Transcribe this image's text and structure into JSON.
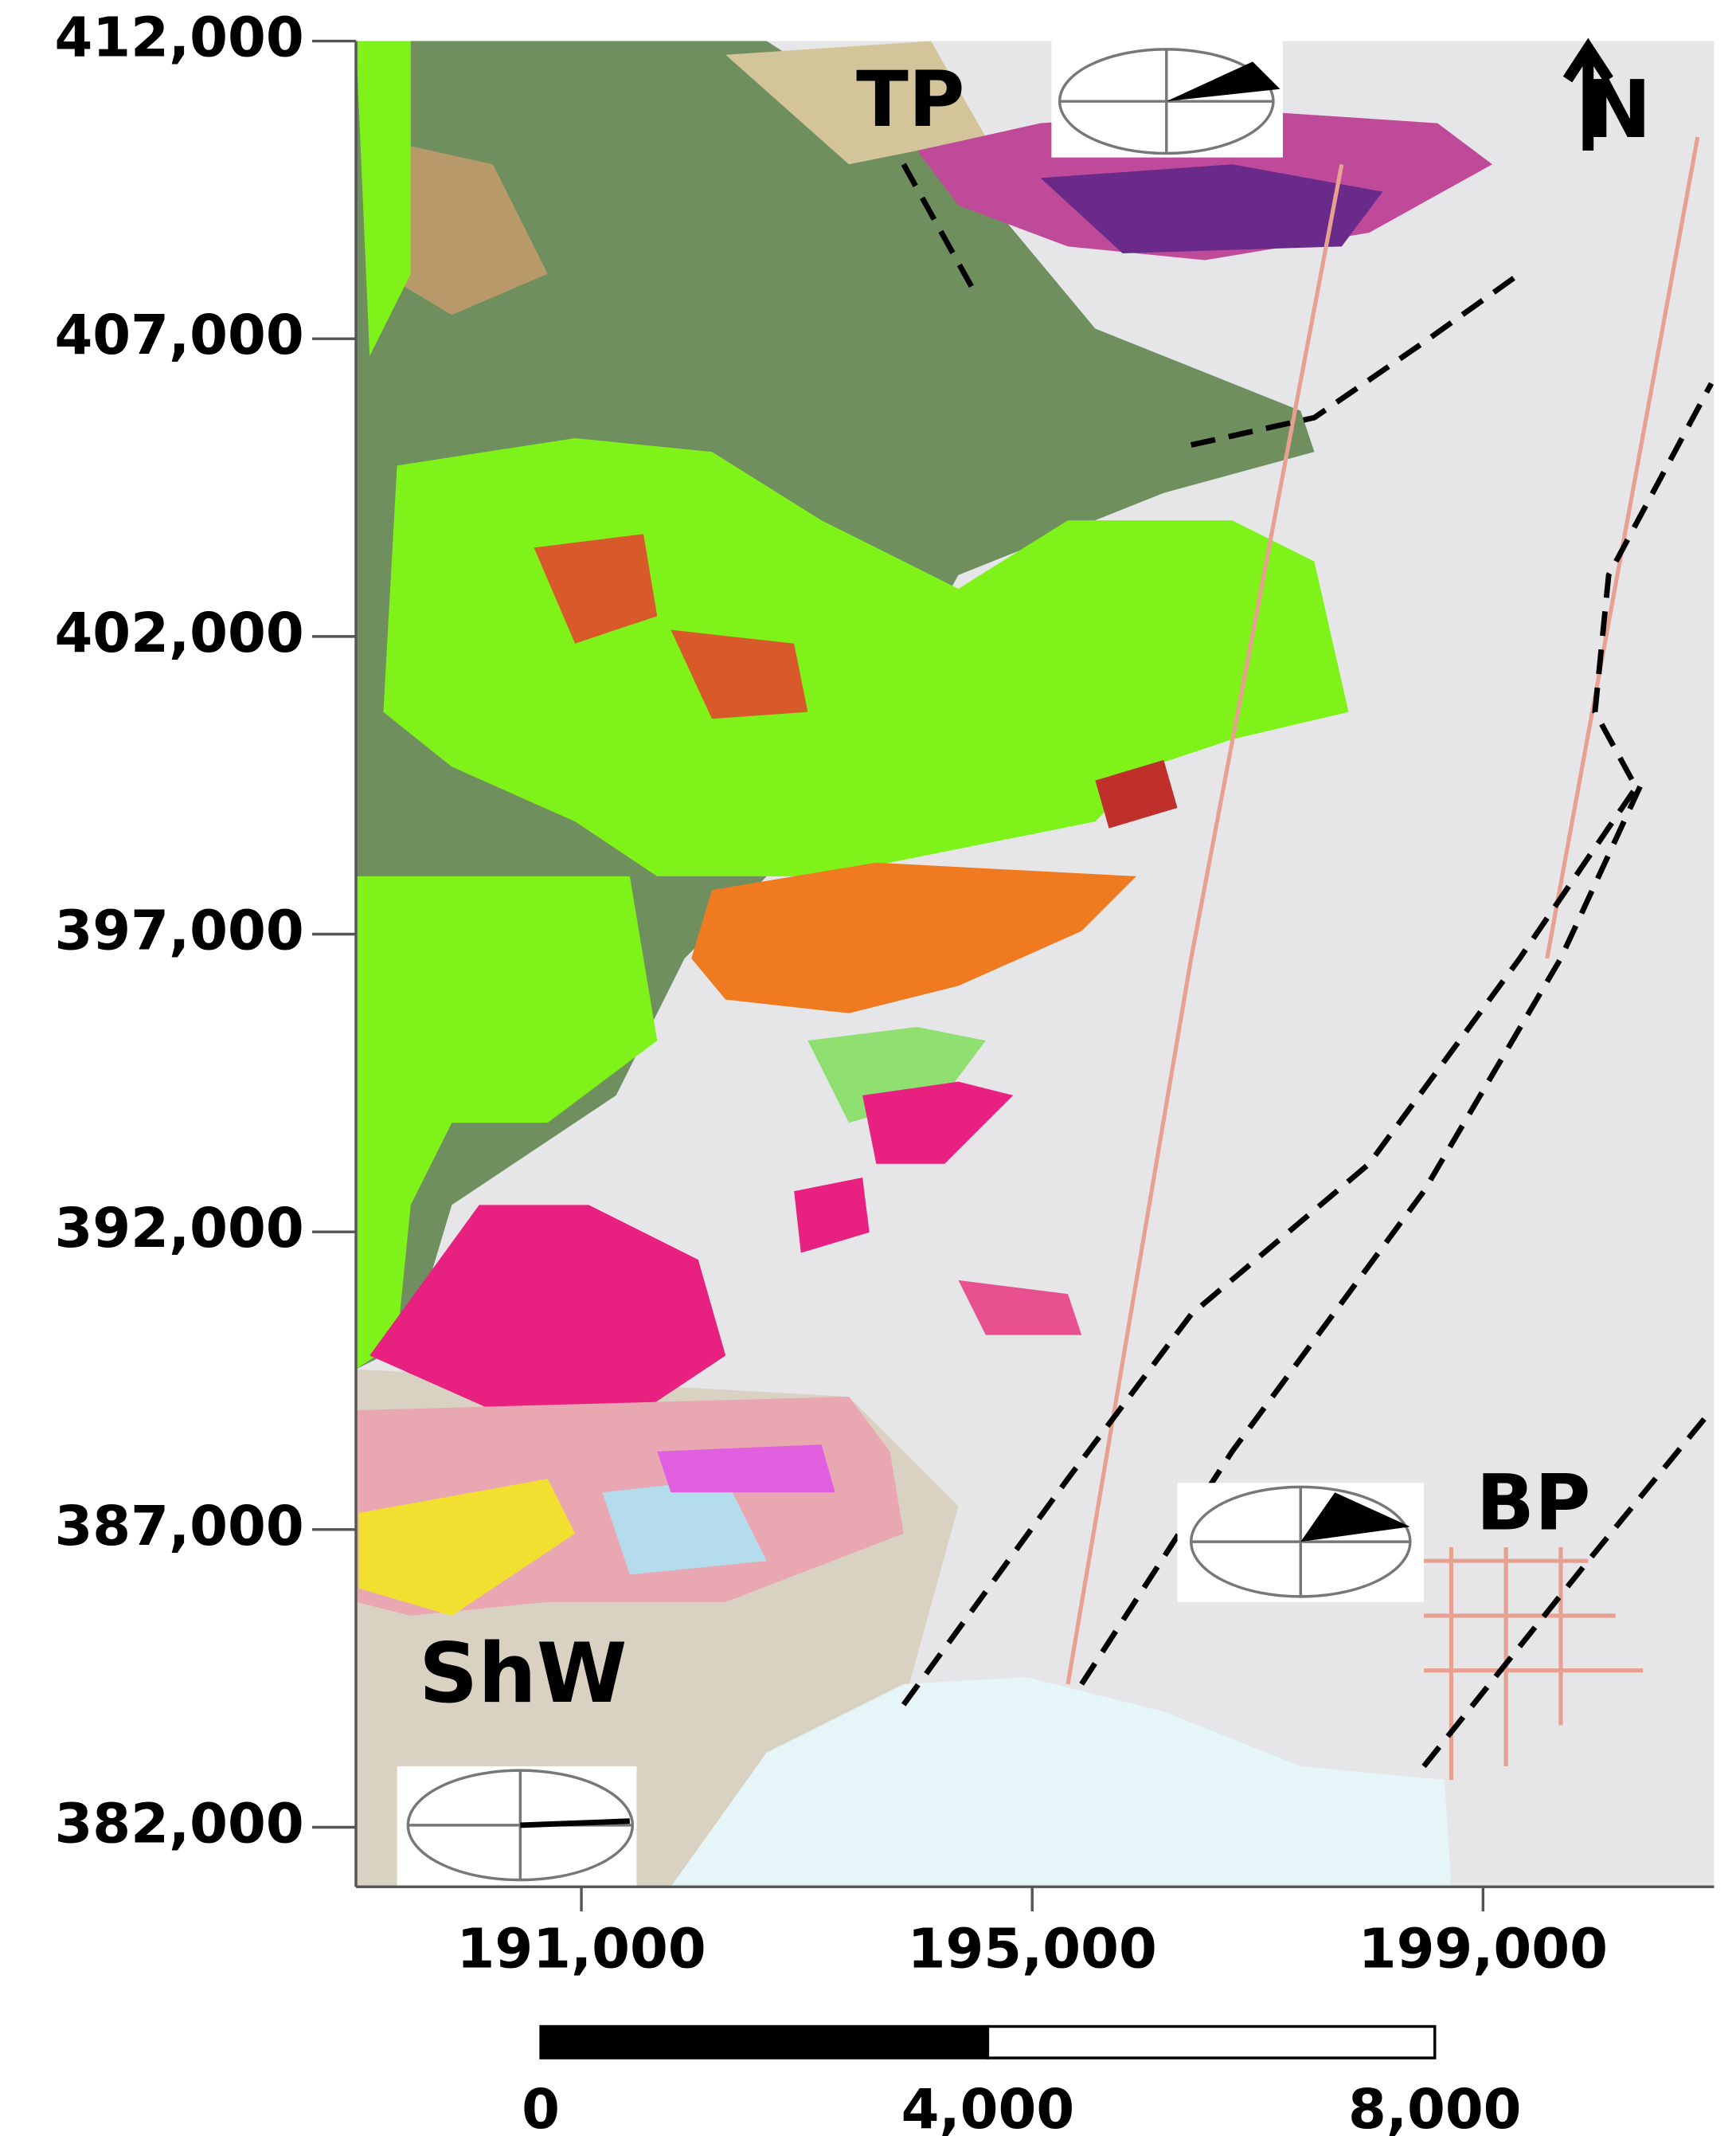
{
  "map": {
    "y_axis": {
      "lim": [
        381000,
        412000
      ],
      "ticks": [
        {
          "value": 412000,
          "label": "412,000"
        },
        {
          "value": 407000,
          "label": "407,000"
        },
        {
          "value": 402000,
          "label": "402,000"
        },
        {
          "value": 397000,
          "label": "397,000"
        },
        {
          "value": 392000,
          "label": "392,000"
        },
        {
          "value": 387000,
          "label": "387,000"
        },
        {
          "value": 382000,
          "label": "382,000"
        }
      ]
    },
    "x_axis": {
      "lim": [
        189000,
        201050
      ],
      "ticks": [
        {
          "value": 191000,
          "label": "191,000"
        },
        {
          "value": 195000,
          "label": "195,000"
        },
        {
          "value": 199000,
          "label": "199,000"
        }
      ]
    },
    "scale_bar": {
      "lim": [
        0,
        8000
      ],
      "ticks": [
        0,
        {
          "value": 4000,
          "label": "4,000"
        },
        {
          "value": 8000,
          "label": "8,000"
        }
      ]
    },
    "places": {
      "tp": "TP",
      "bp": "BP",
      "shw": "ShW"
    },
    "north": "N"
  }
}
